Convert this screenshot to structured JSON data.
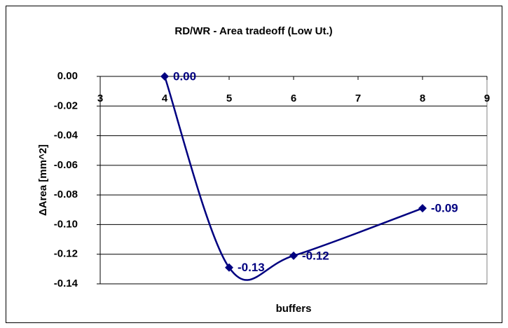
{
  "chart_data": {
    "type": "line",
    "title": "RD/WR -  Area tradeoff (Low Ut.)",
    "x_label": "buffers",
    "y_label": "ΔArea [mm^2]",
    "x": [
      4,
      5,
      6,
      8
    ],
    "series": [
      {
        "name": "ΔArea",
        "color": "#000080",
        "values": [
          0.0,
          -0.129,
          -0.121,
          -0.089
        ],
        "value_labels": [
          "0.00",
          "-0.13",
          "-0.12",
          "-0.09"
        ]
      }
    ],
    "xlim": [
      3,
      9
    ],
    "xticks": [
      3,
      4,
      5,
      6,
      7,
      8,
      9
    ],
    "ylim": [
      -0.14,
      0.0
    ],
    "yticks": [
      {
        "value": 0.0,
        "label": "0.00"
      },
      {
        "value": -0.02,
        "label": "-0.02"
      },
      {
        "value": -0.04,
        "label": "-0.04"
      },
      {
        "value": -0.06,
        "label": "-0.06"
      },
      {
        "value": -0.08,
        "label": "-0.08"
      },
      {
        "value": -0.1,
        "label": "-0.10"
      },
      {
        "value": -0.12,
        "label": "-0.12"
      },
      {
        "value": -0.14,
        "label": "-0.14"
      }
    ],
    "grid": true,
    "smooth": true
  }
}
